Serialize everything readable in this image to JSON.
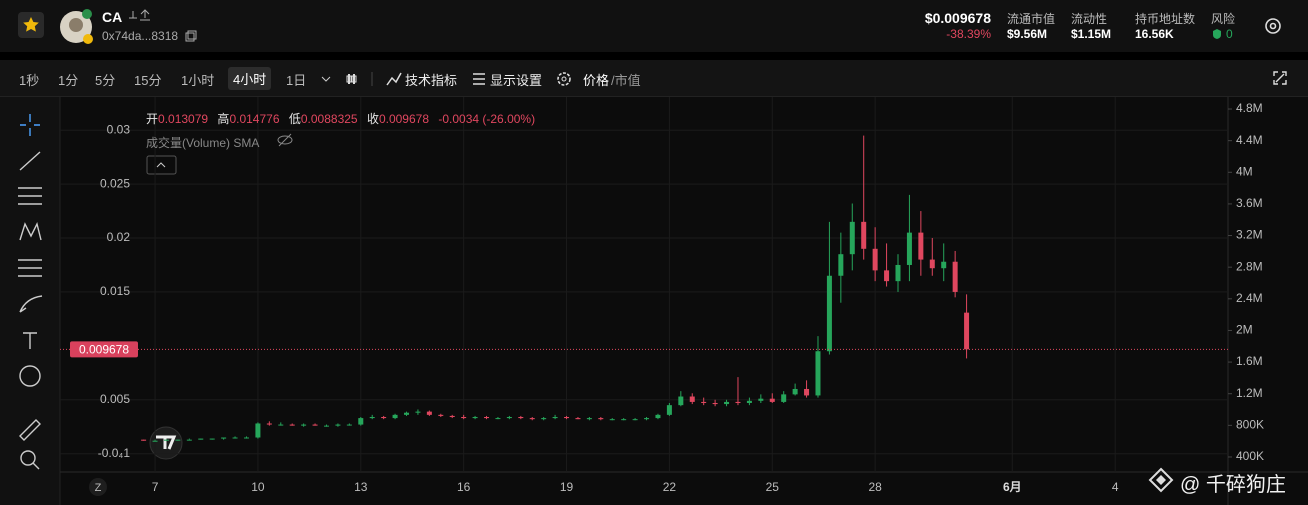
{
  "header": {
    "token": "CA",
    "address": "0x74da...8318",
    "price": "$0.009678",
    "change": "-38.39%",
    "stats": [
      {
        "label": "流通市值",
        "value": "$9.56M"
      },
      {
        "label": "流动性",
        "value": "$1.15M"
      },
      {
        "label": "持币地址数",
        "value": "16.56K"
      },
      {
        "label": "风险",
        "value": "0"
      }
    ]
  },
  "toolbar": {
    "intervals": [
      "1秒",
      "1分",
      "5分",
      "15分",
      "1小时",
      "4小时",
      "1日"
    ],
    "indicators": "技术指标",
    "display": "显示设置",
    "price_toggle": "价格",
    "mcap_toggle": "/市值"
  },
  "chart_ui": {
    "ohlc_labels": [
      "开",
      "高",
      "低",
      "收"
    ],
    "change": "-0.0034 (-26.00%)",
    "volume_legend": "成交量(Volume) SMA",
    "timezone": "Z",
    "watermark": "@ 千碎狗庄"
  },
  "chart_data": {
    "type": "candlestick",
    "up_color": "#26a65b",
    "down_color": "#e0475f",
    "grid": true,
    "categories": [
      null,
      "7",
      null,
      null,
      null,
      null,
      null,
      null,
      null,
      null,
      "10",
      null,
      null,
      null,
      null,
      null,
      null,
      null,
      null,
      "13",
      null,
      null,
      null,
      null,
      null,
      null,
      null,
      null,
      "16",
      null,
      null,
      null,
      null,
      null,
      null,
      null,
      null,
      "19",
      null,
      null,
      null,
      null,
      null,
      null,
      null,
      null,
      "22",
      null,
      null,
      null,
      null,
      null,
      null,
      null,
      null,
      "25",
      null,
      null,
      null,
      null,
      null,
      null,
      null,
      null,
      "28",
      null,
      null,
      null,
      null,
      null,
      null,
      null,
      null,
      null,
      null,
      null,
      "6月",
      null,
      null,
      null,
      null,
      null,
      null,
      null,
      null,
      "4",
      null,
      null,
      null,
      null,
      null,
      null,
      null,
      null,
      null
    ],
    "open": [
      0.0013,
      0.0012,
      0.0012,
      0.0013,
      0.0013,
      0.0013,
      0.0014,
      0.0014,
      0.0015,
      0.0015,
      0.0015,
      0.0028,
      0.0027,
      0.0027,
      0.0026,
      0.0027,
      0.0026,
      0.0026,
      0.0027,
      0.0027,
      0.0033,
      0.0034,
      0.0033,
      0.0036,
      0.0038,
      0.0039,
      0.0036,
      0.0035,
      0.0034,
      0.0033,
      0.0034,
      0.0033,
      0.0033,
      0.0034,
      0.0033,
      0.0032,
      0.0033,
      0.0034,
      0.0033,
      0.0032,
      0.0033,
      0.0032,
      0.0032,
      0.0032,
      0.0032,
      0.0033,
      0.0036,
      0.0045,
      0.0053,
      0.0048,
      0.0047,
      0.0046,
      0.0048,
      0.0047,
      0.0049,
      0.0051,
      0.0048,
      0.0055,
      0.006,
      0.0054,
      0.0095,
      0.0165,
      0.0185,
      0.0215,
      0.019,
      0.017,
      0.016,
      0.0175,
      0.0205,
      0.018,
      0.0172,
      0.0178,
      0.013079,
      null,
      null,
      null,
      null,
      null,
      null,
      null,
      null,
      null,
      null,
      null,
      null,
      null,
      null,
      null,
      null,
      null,
      null,
      null,
      null,
      null,
      null
    ],
    "high": [
      0.0013,
      0.0013,
      0.0013,
      0.0013,
      0.0014,
      0.0014,
      0.0014,
      0.0015,
      0.0016,
      0.0016,
      0.0029,
      0.003,
      0.0029,
      0.0028,
      0.0028,
      0.0028,
      0.0027,
      0.0028,
      0.0028,
      0.0034,
      0.0036,
      0.0035,
      0.0037,
      0.0039,
      0.0041,
      0.004,
      0.0037,
      0.0036,
      0.0036,
      0.0035,
      0.0035,
      0.0034,
      0.0035,
      0.0035,
      0.0034,
      0.0034,
      0.0036,
      0.0035,
      0.0034,
      0.0034,
      0.0034,
      0.0033,
      0.0033,
      0.0033,
      0.0034,
      0.0037,
      0.0047,
      0.0058,
      0.0056,
      0.0052,
      0.005,
      0.005,
      0.0071,
      0.0052,
      0.0055,
      0.0056,
      0.0058,
      0.0065,
      0.0068,
      0.0109,
      0.0215,
      0.0205,
      0.0232,
      0.0295,
      0.021,
      0.0195,
      0.0185,
      0.024,
      0.0225,
      0.02,
      0.0195,
      0.0188,
      0.014776,
      null,
      null,
      null,
      null,
      null,
      null,
      null,
      null,
      null,
      null,
      null,
      null,
      null,
      null,
      null,
      null,
      null,
      null,
      null,
      null,
      null,
      null
    ],
    "low": [
      0.0012,
      0.0012,
      0.0012,
      0.0012,
      0.0013,
      0.0013,
      0.0013,
      0.0013,
      0.0014,
      0.0014,
      0.0014,
      0.0026,
      0.0026,
      0.0026,
      0.0025,
      0.0026,
      0.0025,
      0.0025,
      0.0026,
      0.0026,
      0.0032,
      0.0032,
      0.0032,
      0.0035,
      0.0036,
      0.0035,
      0.0034,
      0.0033,
      0.0032,
      0.0032,
      0.0032,
      0.0032,
      0.0032,
      0.0032,
      0.0031,
      0.0031,
      0.0032,
      0.0032,
      0.0032,
      0.0031,
      0.0031,
      0.0031,
      0.0031,
      0.0031,
      0.0031,
      0.0032,
      0.0035,
      0.0044,
      0.0046,
      0.0045,
      0.0044,
      0.0044,
      0.0045,
      0.0045,
      0.0047,
      0.0047,
      0.0047,
      0.0054,
      0.0052,
      0.0052,
      0.0092,
      0.014,
      0.017,
      0.018,
      0.016,
      0.0155,
      0.015,
      0.016,
      0.0165,
      0.0165,
      0.016,
      0.0145,
      0.0088325,
      null,
      null,
      null,
      null,
      null,
      null,
      null,
      null,
      null,
      null,
      null,
      null,
      null,
      null,
      null,
      null,
      null,
      null,
      null,
      null,
      null,
      null
    ],
    "close": [
      0.0012,
      0.0012,
      0.0013,
      0.0013,
      0.0013,
      0.0014,
      0.0014,
      0.0015,
      0.0015,
      0.0015,
      0.0028,
      0.0027,
      0.0027,
      0.0026,
      0.0027,
      0.0026,
      0.0026,
      0.0027,
      0.0027,
      0.0033,
      0.0034,
      0.0033,
      0.0036,
      0.0038,
      0.0039,
      0.0036,
      0.0035,
      0.0034,
      0.0033,
      0.0034,
      0.0033,
      0.0033,
      0.0034,
      0.0033,
      0.0032,
      0.0033,
      0.0034,
      0.0033,
      0.0032,
      0.0033,
      0.0032,
      0.0032,
      0.0032,
      0.0032,
      0.0033,
      0.0036,
      0.0045,
      0.0053,
      0.0048,
      0.0047,
      0.0046,
      0.0048,
      0.0047,
      0.0049,
      0.0051,
      0.0048,
      0.0055,
      0.006,
      0.0054,
      0.0095,
      0.0165,
      0.0185,
      0.0215,
      0.019,
      0.017,
      0.016,
      0.0175,
      0.0205,
      0.018,
      0.0172,
      0.0178,
      0.015,
      0.009678,
      null,
      null,
      null,
      null,
      null,
      null,
      null,
      null,
      null,
      null,
      null,
      null,
      null,
      null,
      null,
      null,
      null,
      null,
      null,
      null,
      null,
      null
    ],
    "ylim": [
      -0.0017,
      0.0328
    ],
    "yticks": [
      0.03,
      0.025,
      0.02,
      0.015,
      0.005,
      {
        "value": -1e-05,
        "label": "-0.0₄1"
      }
    ],
    "y2lim": [
      210000,
      4914000
    ],
    "y2ticks": [
      {
        "value": 4800000,
        "label": "4.8M"
      },
      {
        "value": 4400000,
        "label": "4.4M"
      },
      {
        "value": 4000000,
        "label": "4M"
      },
      {
        "value": 3600000,
        "label": "3.6M"
      },
      {
        "value": 3200000,
        "label": "3.2M"
      },
      {
        "value": 2800000,
        "label": "2.8M"
      },
      {
        "value": 2400000,
        "label": "2.4M"
      },
      {
        "value": 2000000,
        "label": "2M"
      },
      {
        "value": 1600000,
        "label": "1.6M"
      },
      {
        "value": 1200000,
        "label": "1.2M"
      },
      {
        "value": 800000,
        "label": "800K"
      },
      {
        "value": 400000,
        "label": "400K"
      }
    ]
  }
}
